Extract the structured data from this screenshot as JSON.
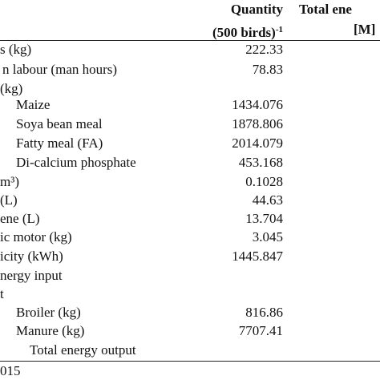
{
  "header": {
    "quantity": "Quantity",
    "quantity_unit": "(500 birds)",
    "quantity_unit_sup": "-1",
    "energy": "Total ene",
    "energy_unit": "[M]"
  },
  "table": {
    "rows": [
      [
        "s (kg)",
        "222.33"
      ],
      [
        "n labour (man hours)",
        "78.83"
      ],
      [
        "(kg)",
        ""
      ],
      [
        "Maize",
        "1434.076"
      ],
      [
        "Soya bean meal",
        "1878.806"
      ],
      [
        "Fatty meal (FA)",
        "2014.079"
      ],
      [
        "Di-calcium phosphate",
        "453.168"
      ],
      [
        "m³)",
        "0.1028"
      ],
      [
        "(L)",
        "44.63"
      ],
      [
        "ene (L)",
        "13.704"
      ],
      [
        "ic motor (kg)",
        "3.045"
      ],
      [
        "icity (kWh)",
        "1445.847"
      ],
      [
        "nergy input",
        ""
      ],
      [
        "t",
        ""
      ],
      [
        "Broiler (kg)",
        "816.86"
      ],
      [
        "Manure (kg)",
        "7707.41"
      ],
      [
        "Total energy output",
        ""
      ]
    ]
  },
  "footer": {
    "source": "015"
  }
}
